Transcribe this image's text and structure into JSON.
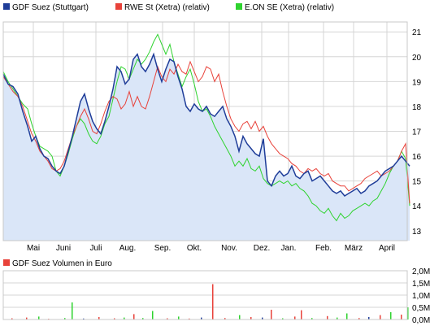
{
  "chart_data": [
    {
      "type": "area",
      "legend": [
        {
          "label": "GDF Suez (Stuttgart)",
          "color": "#1f3d99"
        },
        {
          "label": "RWE St (Xetra) (relativ)",
          "color": "#e8423a"
        },
        {
          "label": "E.ON SE (Xetra) (relativ)",
          "color": "#2fd32f"
        }
      ],
      "months": [
        "Mai",
        "Juni",
        "Juli",
        "Aug.",
        "Sep.",
        "Okt.",
        "Nov.",
        "Dez.",
        "Jan.",
        "Feb.",
        "März",
        "April"
      ],
      "y_ticks": [
        "13",
        "14",
        "15",
        "16",
        "17",
        "18",
        "19",
        "20",
        "21"
      ],
      "ylim": [
        12.6,
        21.4
      ],
      "grid": true,
      "colors": {
        "area_fill": "#dae6f8",
        "area_line": "#1f3d99",
        "grid": "#d6d6d6",
        "frame": "#c8c8c8"
      },
      "series": [
        {
          "key": "gdf",
          "color": "#1f3d99",
          "x": [
            0,
            6,
            12,
            18,
            24,
            30,
            35,
            40,
            45,
            50,
            55,
            60,
            65,
            70,
            75,
            80,
            85,
            90,
            95,
            100,
            105,
            110,
            115,
            120,
            125,
            130,
            135,
            140,
            145,
            150,
            155,
            160,
            165,
            170,
            175,
            180,
            185,
            190,
            195,
            200,
            205,
            210,
            215,
            220,
            225,
            230,
            235,
            240,
            245,
            250,
            255,
            260,
            265,
            270,
            275,
            280,
            285,
            290,
            295,
            300,
            305,
            310,
            315,
            320,
            325,
            330,
            335,
            340,
            345,
            350,
            355,
            360,
            365,
            370,
            375,
            380,
            385,
            390,
            395,
            400,
            405,
            410,
            415,
            420,
            425,
            430,
            435,
            440,
            445,
            450,
            455,
            460,
            465,
            470,
            475,
            480,
            485,
            490,
            495,
            500
          ],
          "values": [
            19.3,
            18.9,
            18.8,
            18.5,
            17.8,
            17.2,
            16.6,
            16.8,
            16.3,
            16.0,
            15.9,
            15.6,
            15.4,
            15.3,
            15.6,
            16.2,
            16.8,
            17.5,
            18.2,
            18.5,
            17.9,
            17.4,
            17.1,
            16.9,
            17.4,
            18.0,
            18.7,
            19.6,
            19.4,
            18.9,
            19.1,
            19.9,
            20.1,
            19.6,
            19.4,
            19.7,
            20.1,
            19.5,
            19.0,
            19.5,
            19.9,
            19.8,
            19.2,
            18.7,
            18.0,
            17.8,
            18.1,
            17.9,
            17.8,
            18.0,
            17.7,
            17.6,
            17.8,
            18.0,
            17.5,
            17.2,
            16.8,
            16.2,
            16.8,
            16.5,
            16.3,
            16.1,
            16.0,
            16.7,
            15.0,
            14.8,
            15.2,
            15.4,
            15.2,
            15.3,
            15.6,
            15.2,
            15.1,
            15.3,
            15.4,
            15.0,
            15.1,
            15.2,
            15.0,
            14.8,
            14.6,
            14.5,
            14.6,
            14.4,
            14.5,
            14.6,
            14.7,
            14.5,
            14.6,
            14.8,
            14.9,
            15.0,
            15.2,
            15.4,
            15.5,
            15.6,
            15.8,
            16.0,
            15.8,
            15.6
          ]
        },
        {
          "key": "rwe",
          "color": "#e8423a",
          "x": [
            0,
            6,
            12,
            18,
            24,
            30,
            35,
            40,
            45,
            50,
            55,
            60,
            65,
            70,
            75,
            80,
            85,
            90,
            95,
            100,
            105,
            110,
            115,
            120,
            125,
            130,
            135,
            140,
            145,
            150,
            155,
            160,
            165,
            170,
            175,
            180,
            185,
            190,
            195,
            200,
            205,
            210,
            215,
            220,
            225,
            230,
            235,
            240,
            245,
            250,
            255,
            260,
            265,
            270,
            275,
            280,
            285,
            290,
            295,
            300,
            305,
            310,
            315,
            320,
            325,
            330,
            335,
            340,
            345,
            350,
            355,
            360,
            365,
            370,
            375,
            380,
            385,
            390,
            395,
            400,
            405,
            410,
            415,
            420,
            425,
            430,
            435,
            440,
            445,
            450,
            455,
            460,
            465,
            470,
            475,
            480,
            485,
            490,
            495,
            500
          ],
          "values": [
            19.2,
            18.9,
            18.6,
            18.4,
            18.0,
            17.4,
            16.9,
            16.6,
            16.2,
            16.0,
            15.8,
            15.5,
            15.4,
            15.5,
            15.8,
            16.3,
            16.8,
            17.2,
            17.6,
            17.9,
            17.5,
            17.0,
            16.9,
            17.3,
            17.8,
            18.2,
            18.4,
            18.3,
            17.9,
            18.1,
            18.6,
            18.0,
            18.4,
            18.0,
            17.9,
            18.4,
            19.0,
            19.6,
            19.2,
            19.0,
            19.5,
            19.3,
            19.7,
            19.4,
            19.3,
            19.8,
            19.4,
            19.0,
            19.2,
            19.6,
            19.5,
            19.0,
            19.3,
            18.6,
            18.0,
            17.5,
            17.2,
            17.0,
            17.3,
            17.4,
            17.1,
            17.4,
            17.0,
            17.2,
            16.8,
            16.5,
            16.3,
            16.1,
            16.0,
            15.9,
            15.7,
            15.6,
            15.4,
            15.3,
            15.5,
            15.4,
            15.5,
            15.3,
            15.2,
            15.3,
            15.0,
            14.9,
            14.8,
            14.8,
            14.6,
            14.7,
            14.8,
            14.9,
            15.1,
            15.2,
            15.3,
            15.4,
            15.2,
            15.3,
            15.4,
            15.6,
            15.8,
            16.2,
            16.5,
            14.1
          ]
        },
        {
          "key": "eon",
          "color": "#2fd32f",
          "x": [
            0,
            6,
            12,
            18,
            24,
            30,
            35,
            40,
            45,
            50,
            55,
            60,
            65,
            70,
            75,
            80,
            85,
            90,
            95,
            100,
            105,
            110,
            115,
            120,
            125,
            130,
            135,
            140,
            145,
            150,
            155,
            160,
            165,
            170,
            175,
            180,
            185,
            190,
            195,
            200,
            205,
            210,
            215,
            220,
            225,
            230,
            235,
            240,
            245,
            250,
            255,
            260,
            265,
            270,
            275,
            280,
            285,
            290,
            295,
            300,
            305,
            310,
            315,
            320,
            325,
            330,
            335,
            340,
            345,
            350,
            355,
            360,
            365,
            370,
            375,
            380,
            385,
            390,
            395,
            400,
            405,
            410,
            415,
            420,
            425,
            430,
            435,
            440,
            445,
            450,
            455,
            460,
            465,
            470,
            475,
            480,
            485,
            490,
            495,
            500
          ],
          "values": [
            19.4,
            19.0,
            18.7,
            18.4,
            18.1,
            17.9,
            17.3,
            16.8,
            16.4,
            16.3,
            16.2,
            16.0,
            15.4,
            15.2,
            15.6,
            16.1,
            16.7,
            17.2,
            17.5,
            17.3,
            16.9,
            16.6,
            16.5,
            16.8,
            17.3,
            17.6,
            18.3,
            19.0,
            19.6,
            19.5,
            19.1,
            19.5,
            19.9,
            19.7,
            19.9,
            20.2,
            20.6,
            20.9,
            20.5,
            20.1,
            20.5,
            19.8,
            19.3,
            18.8,
            19.2,
            19.5,
            18.9,
            18.2,
            17.8,
            17.9,
            17.6,
            17.2,
            16.9,
            16.6,
            16.3,
            16.0,
            15.6,
            15.8,
            15.6,
            15.9,
            15.5,
            15.4,
            15.6,
            15.1,
            14.9,
            14.8,
            14.9,
            15.0,
            14.9,
            15.0,
            14.8,
            14.9,
            14.7,
            14.6,
            14.4,
            14.1,
            14.0,
            13.8,
            13.7,
            13.9,
            13.6,
            13.4,
            13.7,
            13.5,
            13.6,
            13.8,
            13.9,
            14.0,
            14.1,
            14.0,
            14.2,
            14.3,
            14.6,
            14.9,
            15.3,
            15.6,
            15.8,
            16.2,
            15.9,
            14.0
          ]
        }
      ]
    },
    {
      "type": "bar",
      "legend": [
        {
          "label": "GDF Suez Volumen in Euro",
          "color": "#e8423a"
        }
      ],
      "y_ticks": [
        "0,0M",
        "0,5M",
        "1,0M",
        "1,5M",
        "2,0M"
      ],
      "ylim": [
        0,
        2.0
      ],
      "unit": "M Euro",
      "x": [
        10,
        28,
        43,
        55,
        75,
        84,
        98,
        117,
        136,
        148,
        160,
        171,
        183,
        201,
        215,
        228,
        243,
        257,
        272,
        290,
        304,
        318,
        329,
        343,
        358,
        366,
        379,
        398,
        410,
        422,
        437,
        449,
        463,
        476,
        489,
        497
      ],
      "values": [
        0.05,
        0.08,
        0.12,
        0.03,
        0.06,
        0.7,
        0.04,
        0.1,
        0.05,
        0.08,
        0.22,
        0.06,
        0.35,
        0.05,
        0.12,
        0.04,
        0.08,
        1.45,
        0.06,
        0.18,
        0.1,
        0.08,
        0.4,
        0.05,
        0.12,
        0.38,
        0.06,
        0.14,
        0.08,
        0.25,
        0.06,
        0.1,
        0.18,
        0.3,
        0.2,
        0.5
      ],
      "colors": [
        "#e8423a",
        "#e8423a",
        "#2fd32f",
        "#e8423a",
        "#2fd32f",
        "#2fd32f",
        "#1f3d99",
        "#e8423a",
        "#e8423a",
        "#2fd32f",
        "#e8423a",
        "#2fd32f",
        "#2fd32f",
        "#e8423a",
        "#2fd32f",
        "#e8423a",
        "#1f3d99",
        "#e8423a",
        "#e8423a",
        "#2fd32f",
        "#e8423a",
        "#1f3d99",
        "#e8423a",
        "#2fd32f",
        "#e8423a",
        "#e8423a",
        "#2fd32f",
        "#e8423a",
        "#2fd32f",
        "#2fd32f",
        "#e8423a",
        "#1f3d99",
        "#e8423a",
        "#2fd32f",
        "#e8423a",
        "#2fd32f"
      ]
    }
  ]
}
